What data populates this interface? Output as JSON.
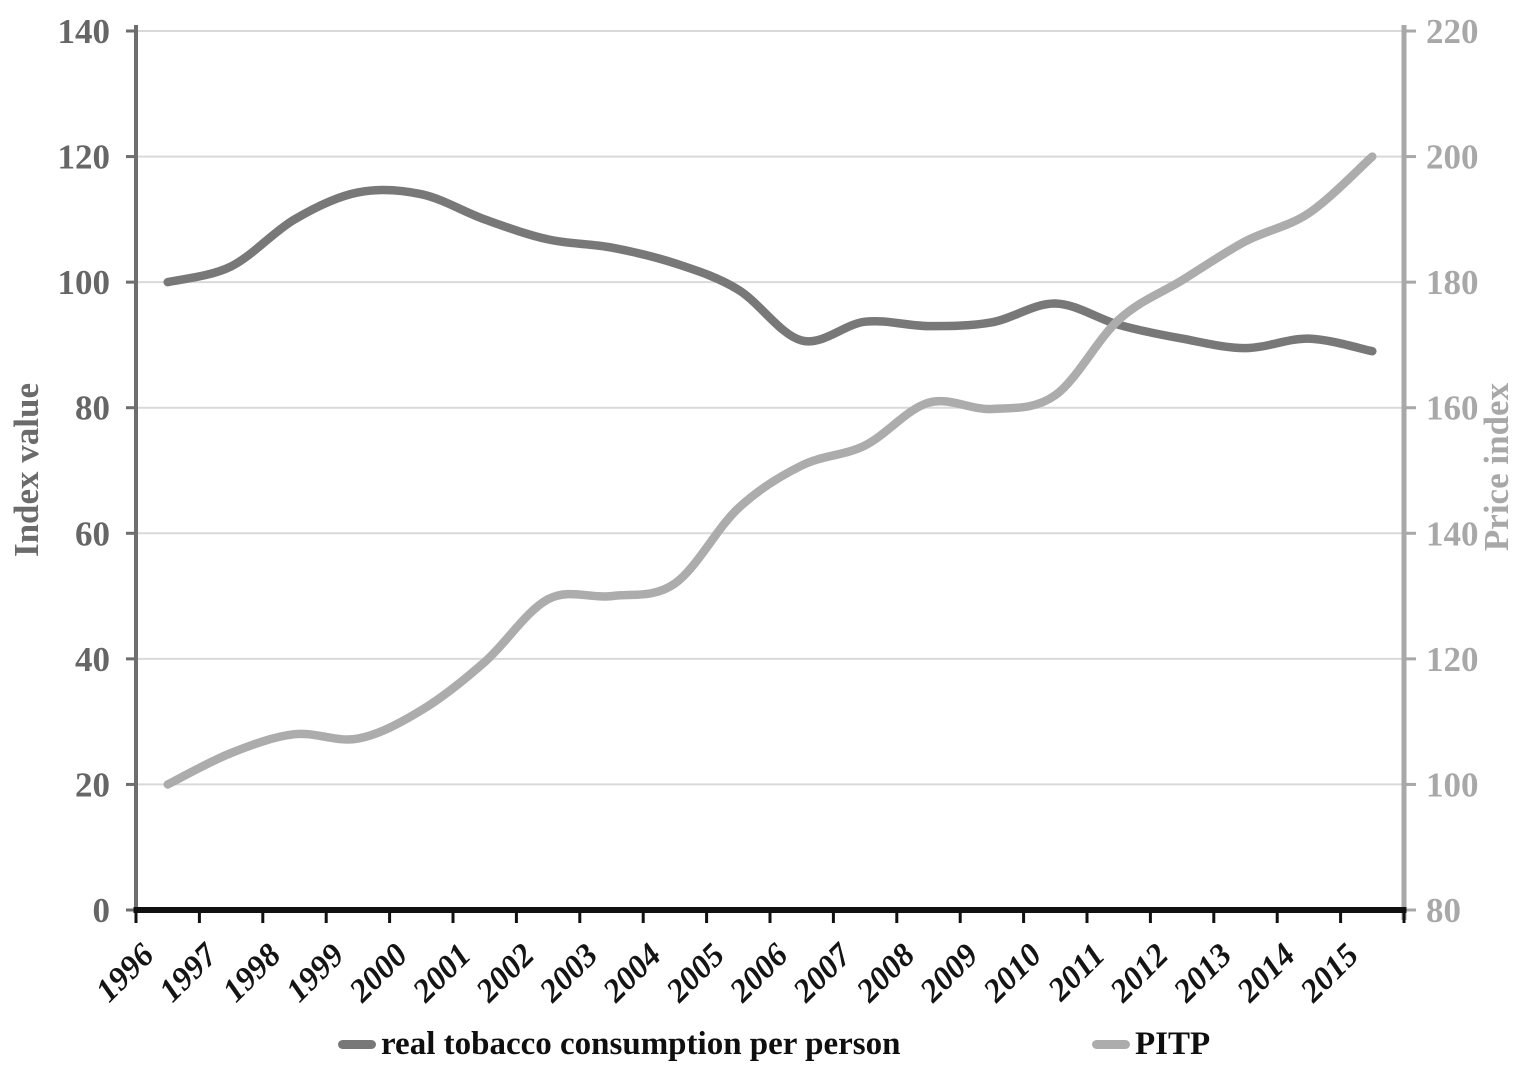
{
  "chart_data": {
    "type": "line",
    "categories": [
      "1996",
      "1997",
      "1998",
      "1999",
      "2000",
      "2001",
      "2002",
      "2003",
      "2004",
      "2005",
      "2006",
      "2007",
      "2008",
      "2009",
      "2010",
      "2011",
      "2012",
      "2013",
      "2014",
      "2015"
    ],
    "series": [
      {
        "name": "real tobacco consumption per person",
        "axis": "left",
        "color": "#787878",
        "values": [
          100,
          102.5,
          110,
          114.3,
          114,
          110,
          106.8,
          105.5,
          103,
          98.8,
          90.7,
          93.7,
          93,
          93.6,
          96.6,
          93.2,
          91,
          89.5,
          91,
          89
        ]
      },
      {
        "name": "PITP",
        "axis": "right",
        "color": "#acacac",
        "values": [
          100,
          105,
          108,
          107.3,
          111.8,
          119.5,
          129.5,
          130,
          132,
          144,
          150.8,
          154,
          160.8,
          159.8,
          162,
          174,
          180.3,
          186.5,
          191,
          200
        ]
      }
    ],
    "left_axis": {
      "label": "Index value",
      "min": 0,
      "max": 140,
      "step": 20,
      "ticks": [
        "0",
        "20",
        "40",
        "60",
        "80",
        "100",
        "120",
        "140"
      ],
      "line_color": "#6e6e6e",
      "text_color": "#666666"
    },
    "right_axis": {
      "label": "Price index",
      "min": 80,
      "max": 220,
      "step": 20,
      "ticks": [
        "80",
        "100",
        "120",
        "140",
        "160",
        "180",
        "200",
        "220"
      ],
      "line_color": "#a8a8a8",
      "text_color": "#a8a8a8"
    },
    "x_axis": {
      "line_color": "#111111",
      "text_color": "#141414"
    },
    "grid": true,
    "grid_color": "#d9d9d9",
    "legend_position": "bottom"
  }
}
